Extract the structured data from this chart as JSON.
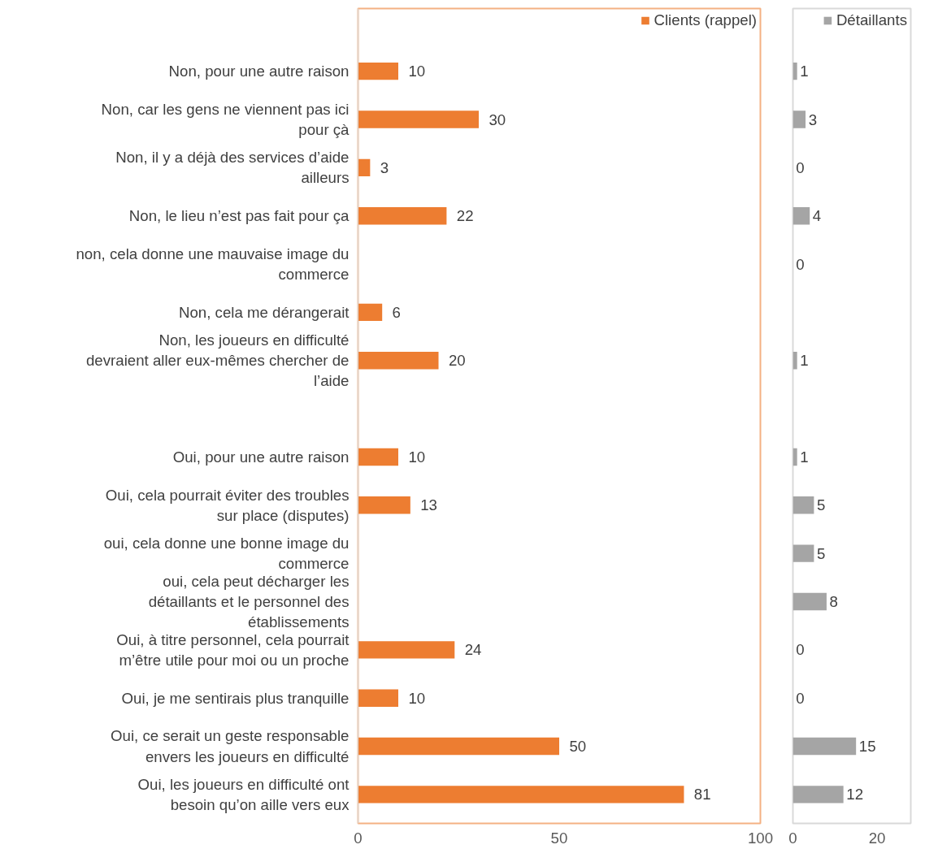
{
  "chart_data": [
    {
      "type": "bar",
      "orientation": "horizontal",
      "categories": [
        "Non, pour une autre raison",
        "Non, car les gens ne viennent pas ici pour çà",
        "Non, il y a déjà des services d’aide ailleurs",
        "Non, le lieu n’est pas fait pour ça",
        "non, cela donne une mauvaise image du commerce",
        "Non, cela me dérangerait",
        "Non, les joueurs en difficulté devraient aller eux-mêmes chercher de l’aide",
        null,
        "Oui, pour une autre raison",
        "Oui, cela pourrait éviter des troubles sur place (disputes)",
        "oui, cela donne une bonne image du commerce",
        "oui, cela peut décharger les détaillants et le personnel des établissements",
        "Oui, à titre personnel, cela pourrait m’être utile pour moi ou un proche",
        "Oui, je me sentirais plus tranquille",
        "Oui, ce serait un geste responsable envers les joueurs en difficulté",
        "Oui, les joueurs en difficulté ont besoin qu’on aille vers eux"
      ],
      "series": [
        {
          "name": "Clients (rappel)",
          "color": "#ed7d31",
          "values": [
            10,
            30,
            3,
            22,
            null,
            6,
            20,
            null,
            10,
            13,
            null,
            null,
            24,
            10,
            50,
            81
          ]
        }
      ],
      "xlim": [
        0,
        100
      ],
      "xticks": [
        0,
        50,
        100
      ],
      "data_labels": true,
      "legend": "top",
      "grid": false
    },
    {
      "type": "bar",
      "orientation": "horizontal",
      "categories": [
        "Non, pour une autre raison",
        "Non, car les gens ne viennent pas ici pour çà",
        "Non, il y a déjà des services d’aide ailleurs",
        "Non, le lieu n’est pas fait pour ça",
        "non, cela donne une mauvaise image du commerce",
        "Non, cela me dérangerait",
        "Non, les joueurs en difficulté devraient aller eux-mêmes chercher de l’aide",
        null,
        "Oui, pour une autre raison",
        "Oui, cela pourrait éviter des troubles sur place (disputes)",
        "oui, cela donne une bonne image du commerce",
        "oui, cela peut décharger les détaillants et le personnel des établissements",
        "Oui, à titre personnel, cela pourrait m’être utile pour moi ou un proche",
        "Oui, je me sentirais plus tranquille",
        "Oui, ce serait un geste responsable envers les joueurs en difficulté",
        "Oui, les joueurs en difficulté ont besoin qu’on aille vers eux"
      ],
      "series": [
        {
          "name": "Détaillants",
          "color": "#a5a5a5",
          "values": [
            1,
            3,
            0,
            4,
            0,
            null,
            1,
            null,
            1,
            5,
            5,
            8,
            0,
            0,
            15,
            12
          ]
        }
      ],
      "xlim": [
        0,
        28
      ],
      "xticks": [
        0,
        20
      ],
      "data_labels": true,
      "legend": "top",
      "grid": false,
      "tick_labels": "x"
    }
  ]
}
